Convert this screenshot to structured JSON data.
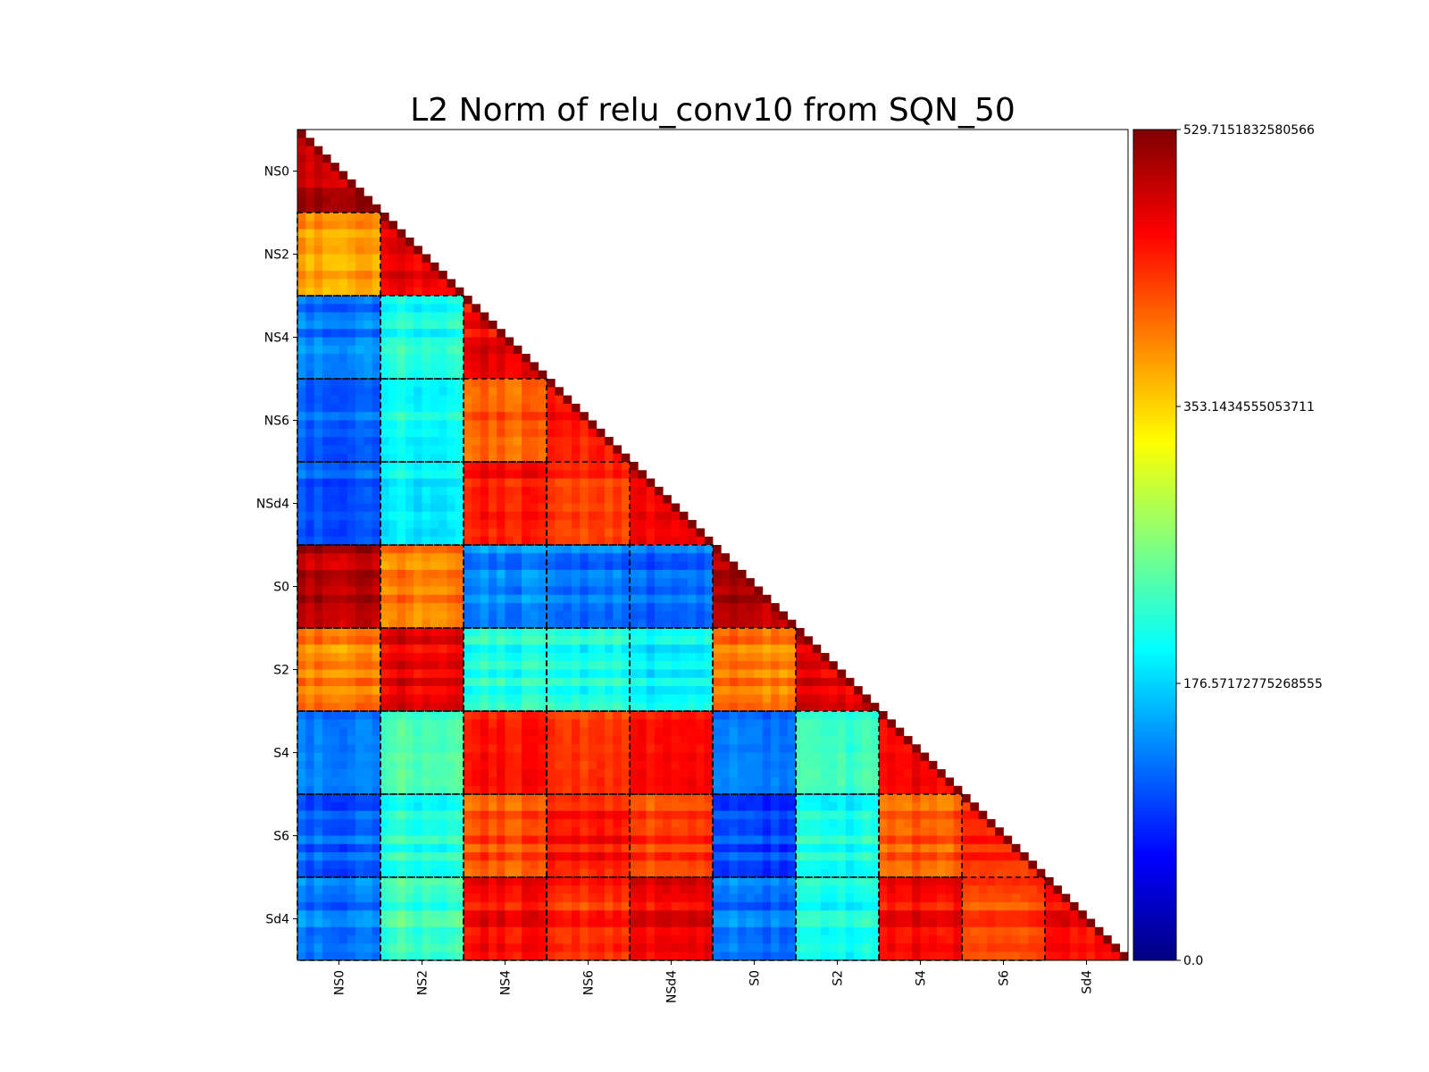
{
  "chart_data": {
    "type": "heatmap",
    "title": "L2 Norm of relu_conv10 from SQN_50",
    "triangle": "lower",
    "colormap": "jet",
    "group_size": 10,
    "groups": [
      "NS0",
      "NS2",
      "NS4",
      "NS6",
      "NSd4",
      "S0",
      "S2",
      "S4",
      "S6",
      "Sd4"
    ],
    "group_dividers": "dashed",
    "xlabel": "",
    "ylabel": "",
    "colorbar": {
      "min": 0.0,
      "max": 529.7151832580566,
      "tick_labels": [
        "0.0",
        "176.57172775268555",
        "353.1434555053711",
        "529.7151832580566"
      ],
      "tick_values": [
        0.0,
        176.57172775268555,
        353.1434555053711,
        529.7151832580566
      ]
    },
    "diagonal_value": 529.7151832580566,
    "block_values": [
      [
        500,
        null,
        null,
        null,
        null,
        null,
        null,
        null,
        null,
        null
      ],
      [
        375,
        475,
        null,
        null,
        null,
        null,
        null,
        null,
        null,
        null
      ],
      [
        125,
        210,
        465,
        null,
        null,
        null,
        null,
        null,
        null,
        null
      ],
      [
        120,
        210,
        420,
        460,
        null,
        null,
        null,
        null,
        null,
        null
      ],
      [
        115,
        200,
        460,
        440,
        480,
        null,
        null,
        null,
        null,
        null
      ],
      [
        500,
        400,
        135,
        125,
        120,
        505,
        null,
        null,
        null,
        null
      ],
      [
        395,
        475,
        215,
        210,
        195,
        400,
        475,
        null,
        null,
        null
      ],
      [
        125,
        235,
        450,
        430,
        455,
        125,
        225,
        460,
        null,
        null
      ],
      [
        115,
        220,
        425,
        455,
        435,
        105,
        210,
        420,
        450,
        null
      ],
      [
        125,
        230,
        460,
        440,
        470,
        125,
        205,
        465,
        430,
        465
      ]
    ]
  }
}
